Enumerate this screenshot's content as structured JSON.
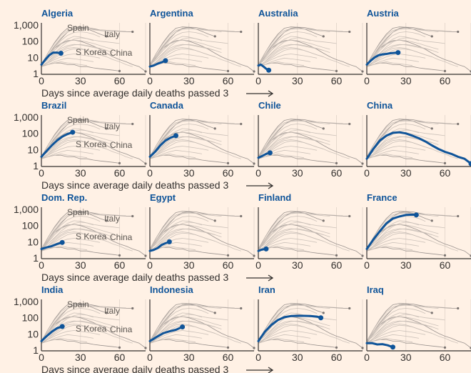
{
  "chart_data": {
    "type": "line",
    "caption": "Days since average daily deaths passed 3",
    "x_ticks": [
      0,
      30,
      60
    ],
    "xlim": [
      0,
      80
    ],
    "y_scale": "log",
    "y_ticks": [
      1,
      10,
      100,
      1000
    ],
    "y_tick_labels": [
      "1",
      "10",
      "100",
      "1,000"
    ],
    "ylim": [
      1,
      1500
    ],
    "colors": {
      "highlight": "#0f5499",
      "reference": "#8a8380",
      "background": "#fff1e5"
    },
    "reference_series": [
      {
        "name": "Spain",
        "x": [
          0,
          5,
          10,
          15,
          20,
          25,
          30,
          35,
          40,
          45,
          50
        ],
        "values": [
          4,
          20,
          90,
          300,
          700,
          850,
          800,
          650,
          450,
          300,
          220
        ]
      },
      {
        "name": "Italy",
        "x": [
          0,
          5,
          10,
          15,
          20,
          25,
          30,
          35,
          40,
          45,
          50,
          55,
          60,
          65,
          70
        ],
        "values": [
          4,
          15,
          50,
          150,
          400,
          700,
          800,
          780,
          650,
          550,
          520,
          480,
          450,
          430,
          420
        ]
      },
      {
        "name": "S Korea",
        "x": [
          0,
          5,
          10,
          15,
          20,
          25,
          30,
          35,
          40,
          45,
          50,
          55,
          60
        ],
        "values": [
          3,
          4,
          5,
          5,
          4,
          4,
          3,
          3,
          2.5,
          2.2,
          2,
          1.8,
          1.6
        ]
      },
      {
        "name": "China",
        "x": [
          0,
          5,
          10,
          15,
          20,
          25,
          30,
          35,
          40,
          45,
          50,
          55,
          60,
          65,
          70,
          75,
          80
        ],
        "values": [
          3,
          12,
          40,
          80,
          120,
          130,
          110,
          80,
          55,
          35,
          20,
          12,
          8,
          6,
          4,
          3,
          1.5
        ]
      },
      {
        "x": [
          0,
          5,
          10,
          15,
          20,
          25,
          30,
          35,
          40,
          45,
          50,
          55
        ],
        "values": [
          4,
          20,
          80,
          250,
          500,
          650,
          700,
          650,
          560,
          500,
          450,
          420
        ]
      },
      {
        "x": [
          0,
          5,
          10,
          15,
          20,
          25,
          30,
          35,
          40,
          45,
          50,
          55,
          60,
          65
        ],
        "values": [
          4,
          15,
          60,
          180,
          400,
          600,
          650,
          620,
          580,
          550,
          520,
          500,
          470,
          450
        ]
      },
      {
        "x": [
          0,
          5,
          10,
          15,
          20,
          25,
          30,
          35,
          40,
          45
        ],
        "values": [
          4,
          12,
          40,
          120,
          250,
          380,
          420,
          380,
          300,
          200
        ]
      },
      {
        "x": [
          0,
          5,
          10,
          15,
          20,
          25,
          30,
          35,
          40
        ],
        "values": [
          4,
          10,
          30,
          80,
          150,
          220,
          200,
          160,
          120
        ]
      },
      {
        "x": [
          0,
          5,
          10,
          15,
          20,
          25,
          30,
          35,
          40,
          45,
          50,
          55,
          60
        ],
        "values": [
          4,
          8,
          20,
          50,
          100,
          150,
          180,
          160,
          130,
          110,
          100,
          90,
          80
        ]
      },
      {
        "x": [
          0,
          5,
          10,
          15,
          20,
          25,
          30,
          35,
          40,
          45,
          50
        ],
        "values": [
          4,
          8,
          18,
          40,
          60,
          70,
          65,
          55,
          45,
          38,
          30
        ]
      },
      {
        "x": [
          0,
          5,
          10,
          15,
          20,
          25,
          30,
          35,
          40,
          45,
          50,
          55
        ],
        "values": [
          4,
          10,
          30,
          70,
          110,
          130,
          120,
          100,
          80,
          60,
          45,
          35
        ]
      },
      {
        "x": [
          0,
          5,
          10,
          15,
          20,
          25,
          30,
          35,
          40,
          45,
          50,
          55
        ],
        "values": [
          3,
          6,
          15,
          30,
          50,
          65,
          70,
          60,
          50,
          40,
          30,
          22
        ]
      },
      {
        "x": [
          0,
          5,
          10,
          15,
          20,
          25,
          30,
          35,
          40,
          45,
          50
        ],
        "values": [
          3,
          5,
          10,
          18,
          30,
          38,
          35,
          30,
          22,
          16,
          12
        ]
      },
      {
        "x": [
          0,
          5,
          10,
          15,
          20,
          25,
          30,
          35,
          40,
          45
        ],
        "values": [
          3,
          5,
          8,
          12,
          16,
          18,
          16,
          14,
          12,
          10
        ]
      },
      {
        "x": [
          0,
          5,
          10,
          15,
          20,
          25,
          30,
          35,
          40
        ],
        "values": [
          3,
          4,
          6,
          8,
          10,
          9,
          8,
          7,
          6
        ]
      },
      {
        "x": [
          0,
          5,
          10,
          15,
          20,
          25,
          30,
          35
        ],
        "values": [
          3,
          4,
          5,
          6,
          5,
          4.5,
          4,
          3.5
        ]
      },
      {
        "x": [
          0,
          5,
          10,
          15,
          20,
          25,
          30,
          35,
          40,
          45,
          50,
          55,
          60,
          65,
          70
        ],
        "values": [
          3,
          6,
          12,
          25,
          40,
          45,
          40,
          30,
          22,
          16,
          12,
          8,
          6,
          4,
          3
        ]
      }
    ],
    "panels": [
      {
        "title": "Algeria",
        "x": [
          0,
          3,
          6,
          9,
          12,
          15
        ],
        "values": [
          4,
          8,
          15,
          22,
          22,
          20
        ],
        "show_ref_labels": true
      },
      {
        "title": "Argentina",
        "x": [
          0,
          3,
          6,
          9,
          12
        ],
        "values": [
          3,
          3.5,
          4.5,
          5.5,
          7
        ],
        "show_ref_labels": false
      },
      {
        "title": "Australia",
        "x": [
          0,
          2,
          4,
          6,
          8
        ],
        "values": [
          3.5,
          4,
          3,
          2.2,
          1.8
        ],
        "show_ref_labels": false
      },
      {
        "title": "Austria",
        "x": [
          0,
          3,
          6,
          9,
          12,
          15,
          18,
          21,
          24
        ],
        "values": [
          4,
          7,
          11,
          15,
          17,
          18,
          20,
          21,
          22
        ],
        "show_ref_labels": false
      },
      {
        "title": "Brazil",
        "x": [
          0,
          4,
          8,
          12,
          16,
          20,
          24
        ],
        "values": [
          4,
          9,
          20,
          40,
          70,
          100,
          130
        ],
        "show_ref_labels": true
      },
      {
        "title": "Canada",
        "x": [
          0,
          4,
          8,
          12,
          16,
          20
        ],
        "values": [
          4,
          8,
          20,
          40,
          60,
          80
        ],
        "show_ref_labels": false
      },
      {
        "title": "Chile",
        "x": [
          0,
          3,
          6,
          9
        ],
        "values": [
          3.5,
          4.5,
          6,
          7
        ],
        "show_ref_labels": false
      },
      {
        "title": "China",
        "x": [
          0,
          5,
          10,
          15,
          20,
          25,
          30,
          35,
          40,
          45,
          50,
          55,
          60,
          65,
          70,
          75,
          80
        ],
        "values": [
          3,
          12,
          40,
          80,
          120,
          130,
          110,
          80,
          55,
          35,
          20,
          12,
          8,
          6,
          4,
          3,
          1.5
        ],
        "show_ref_labels": false
      },
      {
        "title": "Dom. Rep.",
        "x": [
          0,
          4,
          8,
          12,
          16
        ],
        "values": [
          4,
          5,
          6,
          8,
          10
        ],
        "show_ref_labels": true
      },
      {
        "title": "Egypt",
        "x": [
          0,
          3,
          6,
          9,
          12,
          15
        ],
        "values": [
          3,
          3.5,
          4.5,
          7,
          9,
          11
        ],
        "show_ref_labels": false
      },
      {
        "title": "Finland",
        "x": [
          0,
          2,
          4,
          6
        ],
        "values": [
          3,
          3.5,
          3.8,
          4
        ],
        "show_ref_labels": false
      },
      {
        "title": "France",
        "x": [
          0,
          5,
          10,
          15,
          20,
          25,
          30,
          35,
          38
        ],
        "values": [
          4,
          15,
          50,
          150,
          300,
          400,
          500,
          520,
          500
        ],
        "show_ref_labels": false
      },
      {
        "title": "India",
        "x": [
          0,
          4,
          8,
          12,
          16
        ],
        "values": [
          4,
          8,
          15,
          25,
          32
        ],
        "show_ref_labels": true
      },
      {
        "title": "Indonesia",
        "x": [
          0,
          5,
          10,
          15,
          20,
          25
        ],
        "values": [
          4,
          7,
          12,
          16,
          20,
          30
        ],
        "show_ref_labels": false
      },
      {
        "title": "Iran",
        "x": [
          0,
          5,
          10,
          15,
          20,
          25,
          30,
          35,
          40,
          45,
          48
        ],
        "values": [
          4,
          15,
          40,
          80,
          120,
          140,
          145,
          145,
          140,
          130,
          110
        ],
        "show_ref_labels": false
      },
      {
        "title": "Iraq",
        "x": [
          0,
          4,
          8,
          12,
          16,
          20
        ],
        "values": [
          3,
          3,
          2.5,
          2.6,
          2.2,
          1.7
        ],
        "show_ref_labels": false
      }
    ]
  }
}
